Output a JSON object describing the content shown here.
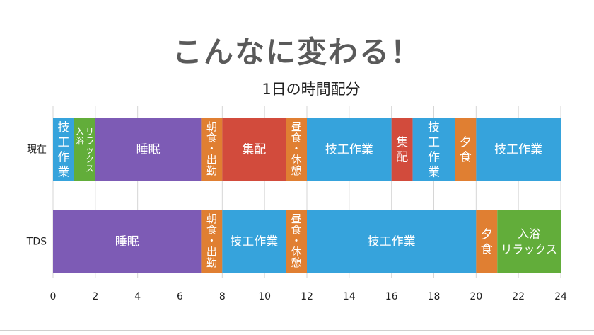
{
  "slide": {
    "title": "こんなに変わる！"
  },
  "chart_data": {
    "type": "bar",
    "orientation": "horizontal",
    "stacked": true,
    "title": "1日の時間配分",
    "xlim": [
      0,
      24
    ],
    "xticks": [
      0,
      2,
      4,
      6,
      8,
      10,
      12,
      14,
      16,
      18,
      20,
      22,
      24
    ],
    "grid": true,
    "rows": [
      {
        "label": "現在",
        "segments": [
          {
            "start": 0,
            "end": 1,
            "label": "技工作業",
            "color": "#36a3dc"
          },
          {
            "start": 1,
            "end": 2,
            "label": "リラックス 入浴",
            "color": "#62ad3a"
          },
          {
            "start": 2,
            "end": 7,
            "label": "睡眠",
            "color": "#7d5bb5"
          },
          {
            "start": 7,
            "end": 8,
            "label": "朝食・出勤",
            "color": "#e07f32"
          },
          {
            "start": 8,
            "end": 11,
            "label": "集配",
            "color": "#d24b3c"
          },
          {
            "start": 11,
            "end": 12,
            "label": "昼食・休憩",
            "color": "#e07f32"
          },
          {
            "start": 12,
            "end": 16,
            "label": "技工作業",
            "color": "#36a3dc"
          },
          {
            "start": 16,
            "end": 17,
            "label": "集配",
            "color": "#d24b3c"
          },
          {
            "start": 17,
            "end": 19,
            "label": "技工作業",
            "color": "#36a3dc"
          },
          {
            "start": 19,
            "end": 20,
            "label": "夕食",
            "color": "#e07f32"
          },
          {
            "start": 20,
            "end": 24,
            "label": "技工作業",
            "color": "#36a3dc"
          }
        ]
      },
      {
        "label": "TDS",
        "segments": [
          {
            "start": 0,
            "end": 7,
            "label": "睡眠",
            "color": "#7d5bb5"
          },
          {
            "start": 7,
            "end": 8,
            "label": "朝食・出勤",
            "color": "#e07f32"
          },
          {
            "start": 8,
            "end": 11,
            "label": "技工作業",
            "color": "#36a3dc"
          },
          {
            "start": 11,
            "end": 12,
            "label": "昼食・休憩",
            "color": "#e07f32"
          },
          {
            "start": 12,
            "end": 20,
            "label": "技工作業",
            "color": "#36a3dc"
          },
          {
            "start": 20,
            "end": 21,
            "label": "夕食",
            "color": "#e07f32"
          },
          {
            "start": 21,
            "end": 24,
            "label": "入浴 リラックス",
            "color": "#62ad3a"
          }
        ]
      }
    ]
  }
}
